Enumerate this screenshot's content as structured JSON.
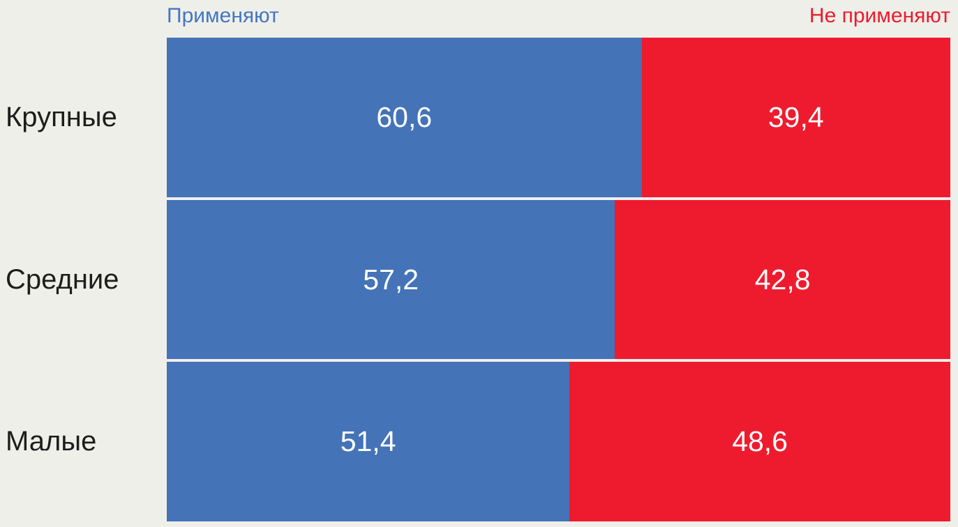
{
  "chart_data": {
    "type": "bar",
    "orientation": "horizontal",
    "stacked": true,
    "title": "",
    "xlabel": "",
    "ylabel": "",
    "xlim": [
      0,
      100
    ],
    "grid": false,
    "legend_position": "top",
    "background_color": "#efefea",
    "categories": [
      "Крупные",
      "Средние",
      "Малые"
    ],
    "series": [
      {
        "name": "Применяют",
        "color": "#4473b8",
        "values": [
          60.6,
          57.2,
          51.4
        ]
      },
      {
        "name": "Не применяют",
        "color": "#ee1b2e",
        "values": [
          39.4,
          42.8,
          48.6
        ]
      }
    ],
    "value_labels": [
      [
        "60,6",
        "39,4"
      ],
      [
        "57,2",
        "42,8"
      ],
      [
        "51,4",
        "48,6"
      ]
    ]
  },
  "legend": {
    "left": "Применяют",
    "right": "Не применяют"
  },
  "colors": {
    "apply_bar": "#4473b8",
    "not_apply_bar": "#ee1b2e",
    "legend_apply_text": "#4377c1",
    "legend_not_apply_text": "#ee1b2e",
    "category_text": "#1d1d1b",
    "value_text": "#ffffff",
    "background": "#efefea"
  }
}
